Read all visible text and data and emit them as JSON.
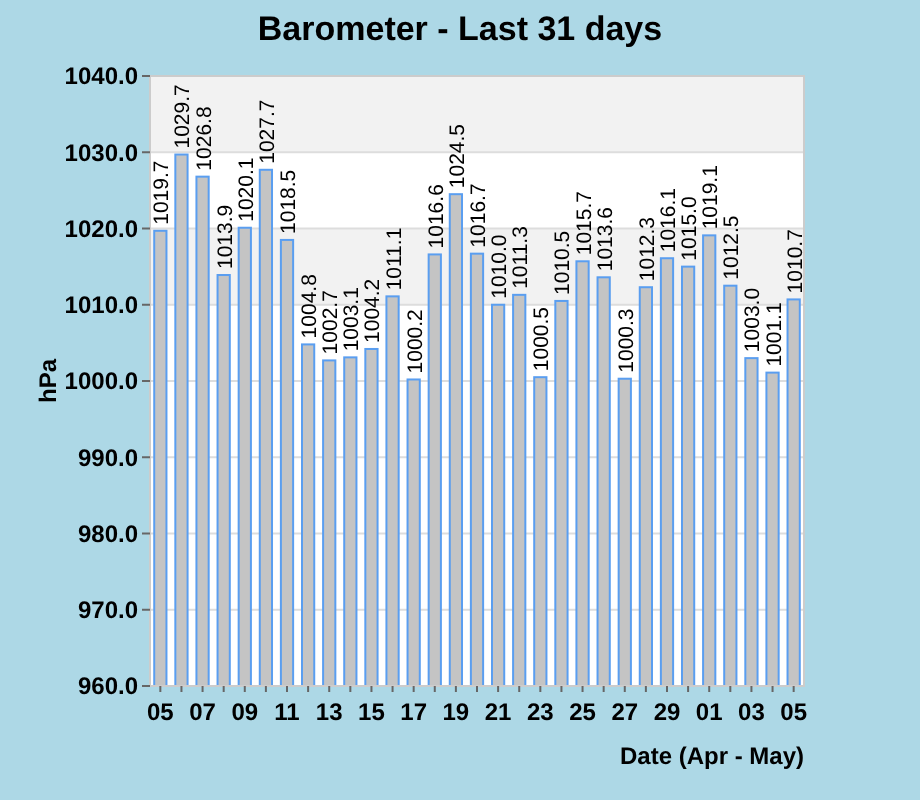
{
  "chart_data": {
    "type": "bar",
    "title": "Barometer - Last 31 days",
    "xlabel": "Date (Apr - May)",
    "ylabel": "hPa",
    "categories": [
      "05",
      null,
      "07",
      null,
      "09",
      null,
      "11",
      null,
      "13",
      null,
      "15",
      null,
      "17",
      null,
      "19",
      null,
      "21",
      null,
      "23",
      null,
      "25",
      null,
      "27",
      null,
      "29",
      null,
      "01",
      null,
      "03",
      null,
      "05"
    ],
    "values": [
      1019.7,
      1029.7,
      1026.8,
      1013.9,
      1020.1,
      1027.7,
      1018.5,
      1004.8,
      1002.7,
      1003.1,
      1004.2,
      1011.1,
      1000.2,
      1016.6,
      1024.5,
      1016.7,
      1010.0,
      1011.3,
      1000.5,
      1010.5,
      1015.7,
      1013.6,
      1000.3,
      1012.3,
      1016.1,
      1015.0,
      1019.1,
      1012.5,
      1003.0,
      1001.1,
      1010.7
    ],
    "value_labels": [
      "1019.7",
      "1029.7",
      "1026.8",
      "1013.9",
      "1020.1",
      "1027.7",
      "1018.5",
      "1004.8",
      "1002.7",
      "1003.1",
      "1004.2",
      "1011.1",
      "1000.2",
      "1016.6",
      "1024.5",
      "1016.7",
      "1010.0",
      "1011.3",
      "1000.5",
      "1010.5",
      "1015.7",
      "1013.6",
      "1000.3",
      "1012.3",
      "1016.1",
      "1015.0",
      "1019.1",
      "1012.5",
      "1003.0",
      "1001.1",
      "1010.7"
    ],
    "color": "#c4c4c4",
    "ylim": [
      960,
      1040
    ],
    "yticks": [
      {
        "value": 960,
        "label": "960.0"
      },
      {
        "value": 970,
        "label": "970.0"
      },
      {
        "value": 980,
        "label": "980.0"
      },
      {
        "value": 990,
        "label": "990.0"
      },
      {
        "value": 1000,
        "label": "1000.0"
      },
      {
        "value": 1010,
        "label": "1010.0"
      },
      {
        "value": 1020,
        "label": "1020.0"
      },
      {
        "value": 1030,
        "label": "1030.0"
      },
      {
        "value": 1040,
        "label": "1040.0"
      }
    ],
    "bands": [
      {
        "axis": "y",
        "from": 1030,
        "to": 1040,
        "color": "#f2f2f2"
      },
      {
        "axis": "y",
        "from": 1010,
        "to": 1020,
        "color": "#f2f2f2"
      }
    ],
    "grid": "y"
  }
}
